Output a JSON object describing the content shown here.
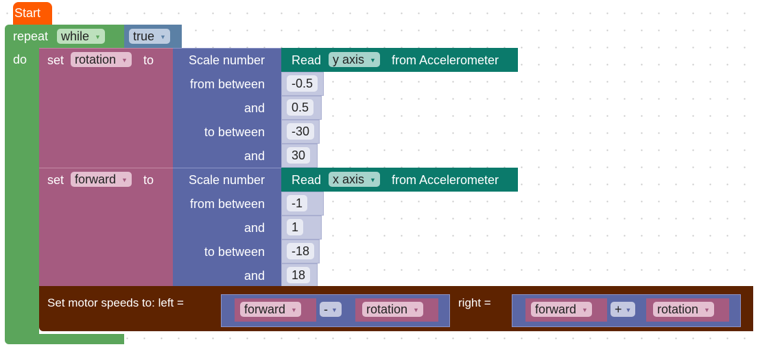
{
  "start": {
    "label": "Start",
    "color": "#fe5a00"
  },
  "repeat": {
    "label": "repeat",
    "mode": "while",
    "do": "do",
    "condition": "true",
    "color": "#5ba55b"
  },
  "set1": {
    "set": "set",
    "variable": "rotation",
    "to": "to",
    "scale": {
      "label": "Scale number",
      "from_between": "from between",
      "and": "and",
      "to_between": "to between",
      "read": "Read",
      "axis": "y axis",
      "from": "from Accelerometer",
      "v1": "-0.5",
      "v2": "0.5",
      "v3": "-30",
      "v4": "30"
    }
  },
  "set2": {
    "set": "set",
    "variable": "forward",
    "to": "to",
    "scale": {
      "label": "Scale number",
      "from_between": "from between",
      "and": "and",
      "to_between": "to between",
      "read": "Read",
      "axis": "x axis",
      "from": "from Accelerometer",
      "v1": "-1",
      "v2": "1",
      "v3": "-18",
      "v4": "18"
    }
  },
  "motor": {
    "label": "Set motor speeds to: left =",
    "right_label": "right =",
    "left": {
      "a": "forward",
      "op": "-",
      "b": "rotation"
    },
    "right": {
      "a": "forward",
      "op": "+",
      "b": "rotation"
    },
    "color": "#5e2300"
  }
}
